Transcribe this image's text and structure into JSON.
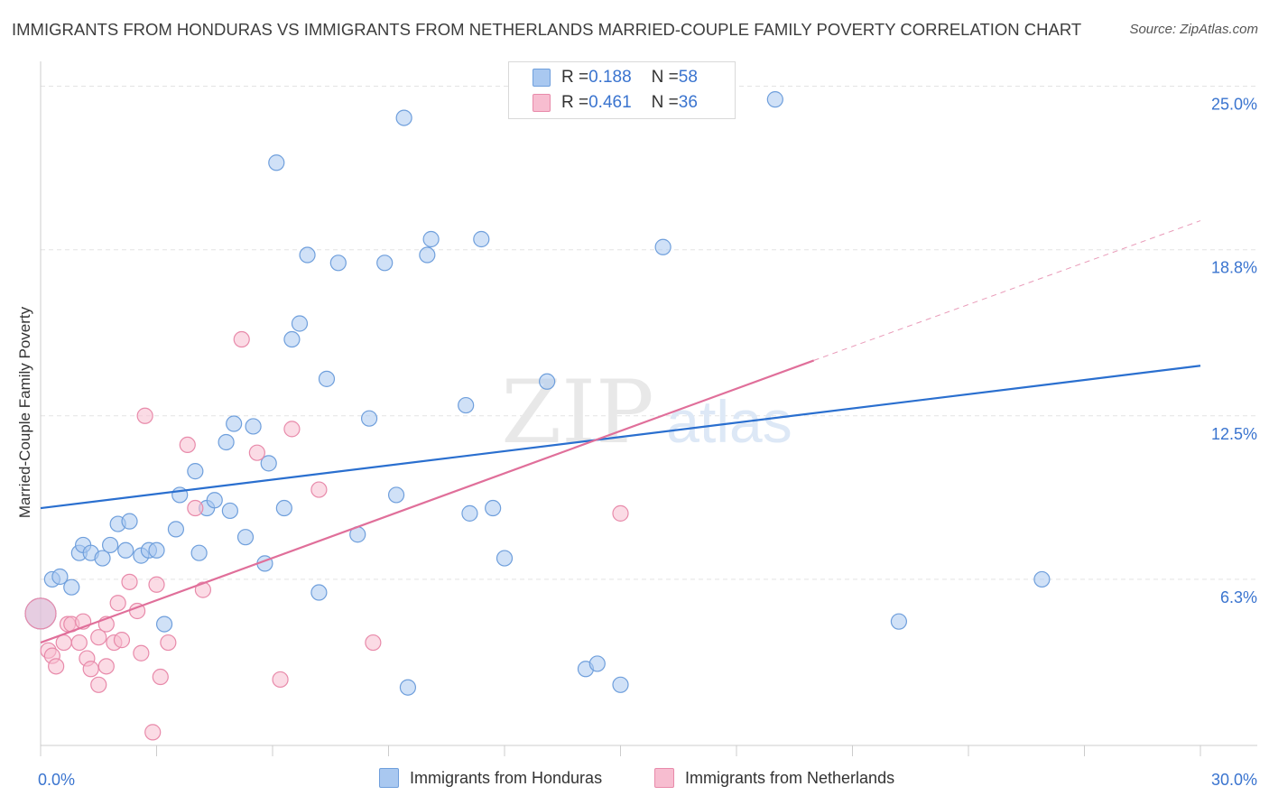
{
  "title": "IMMIGRANTS FROM HONDURAS VS IMMIGRANTS FROM NETHERLANDS MARRIED-COUPLE FAMILY POVERTY CORRELATION CHART",
  "source": "Source: ZipAtlas.com",
  "watermark": {
    "zip": "ZIP",
    "atlas": "atlas"
  },
  "colors": {
    "honduras_fill": "#a9c8f0",
    "honduras_stroke": "#6f9fdc",
    "honduras_line": "#2a6fcf",
    "netherlands_fill": "#f7bdd0",
    "netherlands_stroke": "#e88aaa",
    "netherlands_line": "#e06f9a",
    "tick_label": "#3a74cf",
    "grid": "#e3e3e3"
  },
  "legend": {
    "rows": [
      {
        "r_label": "R = ",
        "r_value": "0.188",
        "n_label": "N = ",
        "n_value": "58"
      },
      {
        "r_label": "R = ",
        "r_value": "0.461",
        "n_label": "N = ",
        "n_value": "36"
      }
    ]
  },
  "chart_data": {
    "type": "scatter",
    "title": "IMMIGRANTS FROM HONDURAS VS IMMIGRANTS FROM NETHERLANDS MARRIED-COUPLE FAMILY POVERTY CORRELATION CHART",
    "xlabel": "",
    "ylabel": "Married-Couple Family Poverty",
    "xlim": [
      0,
      30
    ],
    "ylim": [
      0,
      25.6
    ],
    "x_tick_labels": [
      {
        "value": 0,
        "label": "0.0%"
      },
      {
        "value": 30,
        "label": "30.0%"
      }
    ],
    "y_tick_labels": [
      {
        "value": 6.3,
        "label": "6.3%"
      },
      {
        "value": 12.5,
        "label": "12.5%"
      },
      {
        "value": 18.8,
        "label": "18.8%"
      },
      {
        "value": 25.0,
        "label": "25.0%"
      }
    ],
    "x_minor_ticks": [
      0,
      3,
      6,
      9,
      12,
      15,
      18,
      21,
      24,
      27,
      30
    ],
    "grid": true,
    "legend_position": "top-center",
    "series": [
      {
        "name": "Immigrants from Honduras",
        "R": 0.188,
        "N": 58,
        "trend": {
          "x": [
            0,
            30
          ],
          "y": [
            9.0,
            14.4
          ]
        },
        "points": [
          [
            0.3,
            6.3
          ],
          [
            0.5,
            6.4
          ],
          [
            0.8,
            6.0
          ],
          [
            1.0,
            7.3
          ],
          [
            1.1,
            7.6
          ],
          [
            1.3,
            7.3
          ],
          [
            1.6,
            7.1
          ],
          [
            1.8,
            7.6
          ],
          [
            2.0,
            8.4
          ],
          [
            2.2,
            7.4
          ],
          [
            2.3,
            8.5
          ],
          [
            2.6,
            7.2
          ],
          [
            2.8,
            7.4
          ],
          [
            3.0,
            7.4
          ],
          [
            3.2,
            4.6
          ],
          [
            3.5,
            8.2
          ],
          [
            3.6,
            9.5
          ],
          [
            4.0,
            10.4
          ],
          [
            4.1,
            7.3
          ],
          [
            4.3,
            9.0
          ],
          [
            4.5,
            9.3
          ],
          [
            4.8,
            11.5
          ],
          [
            4.9,
            8.9
          ],
          [
            5.0,
            12.2
          ],
          [
            5.3,
            7.9
          ],
          [
            5.5,
            12.1
          ],
          [
            5.8,
            6.9
          ],
          [
            5.9,
            10.7
          ],
          [
            6.1,
            22.1
          ],
          [
            6.3,
            9.0
          ],
          [
            6.5,
            15.4
          ],
          [
            6.7,
            16.0
          ],
          [
            6.9,
            18.6
          ],
          [
            7.2,
            5.8
          ],
          [
            7.4,
            13.9
          ],
          [
            7.7,
            18.3
          ],
          [
            8.2,
            8.0
          ],
          [
            8.5,
            12.4
          ],
          [
            8.9,
            18.3
          ],
          [
            9.2,
            9.5
          ],
          [
            9.4,
            23.8
          ],
          [
            9.5,
            2.2
          ],
          [
            10.0,
            18.6
          ],
          [
            10.1,
            19.2
          ],
          [
            11.0,
            12.9
          ],
          [
            11.1,
            8.8
          ],
          [
            11.4,
            19.2
          ],
          [
            11.7,
            9.0
          ],
          [
            12.0,
            7.1
          ],
          [
            13.1,
            13.8
          ],
          [
            14.1,
            2.9
          ],
          [
            14.4,
            3.1
          ],
          [
            15.0,
            2.3
          ],
          [
            16.1,
            18.9
          ],
          [
            19.0,
            24.5
          ],
          [
            22.2,
            4.7
          ],
          [
            25.9,
            6.3
          ],
          [
            0.0,
            5.0
          ]
        ]
      },
      {
        "name": "Immigrants from Netherlands",
        "R": 0.461,
        "N": 36,
        "trend": {
          "x": [
            0,
            20
          ],
          "y": [
            3.9,
            14.6
          ]
        },
        "trend_dashed": {
          "x": [
            20,
            30
          ],
          "y": [
            14.6,
            19.9
          ]
        },
        "points": [
          [
            0.0,
            5.0
          ],
          [
            0.2,
            3.6
          ],
          [
            0.3,
            3.4
          ],
          [
            0.4,
            3.0
          ],
          [
            0.6,
            3.9
          ],
          [
            0.7,
            4.6
          ],
          [
            0.8,
            4.6
          ],
          [
            1.0,
            3.9
          ],
          [
            1.1,
            4.7
          ],
          [
            1.2,
            3.3
          ],
          [
            1.3,
            2.9
          ],
          [
            1.5,
            4.1
          ],
          [
            1.5,
            2.3
          ],
          [
            1.7,
            3.0
          ],
          [
            1.7,
            4.6
          ],
          [
            1.9,
            3.9
          ],
          [
            2.0,
            5.4
          ],
          [
            2.1,
            4.0
          ],
          [
            2.3,
            6.2
          ],
          [
            2.5,
            5.1
          ],
          [
            2.6,
            3.5
          ],
          [
            2.7,
            12.5
          ],
          [
            2.9,
            0.5
          ],
          [
            3.0,
            6.1
          ],
          [
            3.1,
            2.6
          ],
          [
            3.3,
            3.9
          ],
          [
            3.8,
            11.4
          ],
          [
            4.0,
            9.0
          ],
          [
            4.2,
            5.9
          ],
          [
            5.2,
            15.4
          ],
          [
            5.6,
            11.1
          ],
          [
            6.2,
            2.5
          ],
          [
            6.5,
            12.0
          ],
          [
            7.2,
            9.7
          ],
          [
            8.6,
            3.9
          ],
          [
            15.0,
            8.8
          ]
        ]
      }
    ]
  }
}
